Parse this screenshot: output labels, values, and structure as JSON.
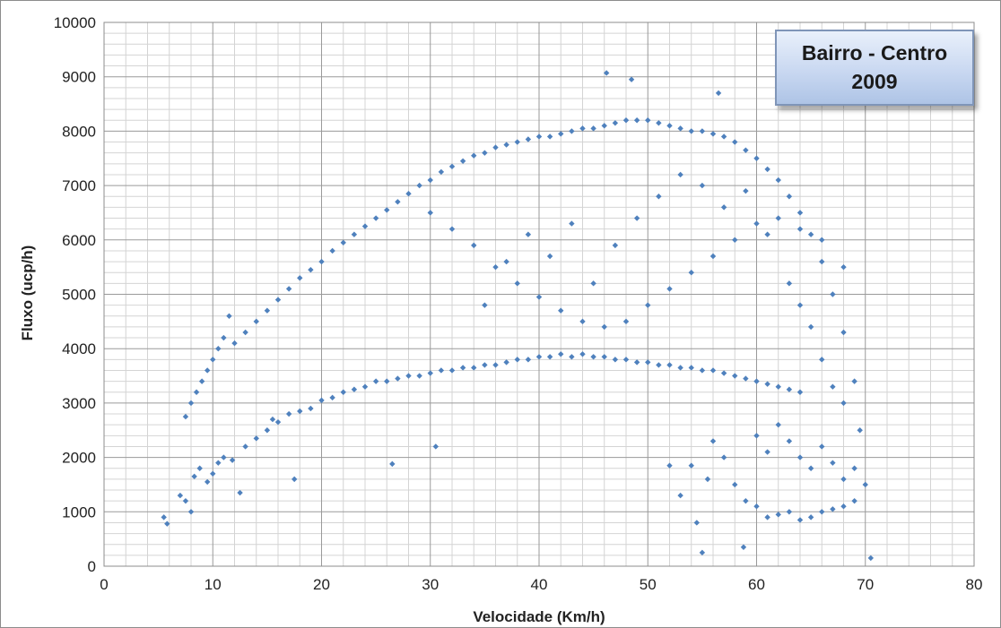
{
  "chart_data": {
    "type": "scatter",
    "title": "Bairro - Centro",
    "subtitle": "2009",
    "xlabel": "Velocidade (Km/h)",
    "ylabel": "Fluxo (ucp/h)",
    "xlim": [
      0,
      80
    ],
    "ylim": [
      0,
      10000
    ],
    "x_ticks": [
      "0",
      "10",
      "20",
      "30",
      "40",
      "50",
      "60",
      "70",
      "80"
    ],
    "y_ticks": [
      "0",
      "1000",
      "2000",
      "3000",
      "4000",
      "5000",
      "6000",
      "7000",
      "8000",
      "9000",
      "10000"
    ],
    "grid": true,
    "legend": "none",
    "marker_color": "#4f81bd",
    "series": [
      {
        "points": [
          [
            5.5,
            900
          ],
          [
            5.8,
            780
          ],
          [
            7,
            1300
          ],
          [
            7.5,
            1200
          ],
          [
            8,
            1000
          ],
          [
            8.3,
            1650
          ],
          [
            8.8,
            1800
          ],
          [
            9.5,
            1550
          ],
          [
            10,
            1700
          ],
          [
            10.5,
            1900
          ],
          [
            11,
            2000
          ],
          [
            11.8,
            1950
          ],
          [
            12.5,
            1350
          ],
          [
            13,
            2200
          ],
          [
            14,
            2350
          ],
          [
            15,
            2500
          ],
          [
            15.5,
            2700
          ],
          [
            16,
            2650
          ],
          [
            17,
            2800
          ],
          [
            17.5,
            1600
          ],
          [
            18,
            2850
          ],
          [
            19,
            2900
          ],
          [
            20,
            3050
          ],
          [
            21,
            3100
          ],
          [
            22,
            3200
          ],
          [
            23,
            3250
          ],
          [
            24,
            3300
          ],
          [
            25,
            3400
          ],
          [
            26,
            3400
          ],
          [
            26.5,
            1880
          ],
          [
            27,
            3450
          ],
          [
            28,
            3500
          ],
          [
            29,
            3500
          ],
          [
            30,
            3550
          ],
          [
            30.5,
            2200
          ],
          [
            31,
            3600
          ],
          [
            32,
            3600
          ],
          [
            33,
            3650
          ],
          [
            34,
            3650
          ],
          [
            35,
            3700
          ],
          [
            36,
            3700
          ],
          [
            37,
            3750
          ],
          [
            38,
            3800
          ],
          [
            39,
            3800
          ],
          [
            40,
            3850
          ],
          [
            41,
            3850
          ],
          [
            42,
            3900
          ],
          [
            43,
            3850
          ],
          [
            44,
            3900
          ],
          [
            45,
            3850
          ],
          [
            46,
            3850
          ],
          [
            47,
            3800
          ],
          [
            48,
            3800
          ],
          [
            49,
            3750
          ],
          [
            50,
            3750
          ],
          [
            51,
            3700
          ],
          [
            52,
            3700
          ],
          [
            53,
            3650
          ],
          [
            54,
            3650
          ],
          [
            55,
            3600
          ],
          [
            56,
            3600
          ],
          [
            57,
            3550
          ],
          [
            58,
            3500
          ],
          [
            59,
            3450
          ],
          [
            60,
            3400
          ],
          [
            61,
            3350
          ],
          [
            62,
            3300
          ],
          [
            63,
            3250
          ],
          [
            64,
            3200
          ],
          [
            7.5,
            2750
          ],
          [
            8,
            3000
          ],
          [
            8.5,
            3200
          ],
          [
            9,
            3400
          ],
          [
            9.5,
            3600
          ],
          [
            10,
            3800
          ],
          [
            10.5,
            4000
          ],
          [
            11,
            4200
          ],
          [
            11.5,
            4600
          ],
          [
            12,
            4100
          ],
          [
            13,
            4300
          ],
          [
            14,
            4500
          ],
          [
            15,
            4700
          ],
          [
            16,
            4900
          ],
          [
            17,
            5100
          ],
          [
            18,
            5300
          ],
          [
            19,
            5450
          ],
          [
            20,
            5600
          ],
          [
            21,
            5800
          ],
          [
            22,
            5950
          ],
          [
            23,
            6100
          ],
          [
            24,
            6250
          ],
          [
            25,
            6400
          ],
          [
            26,
            6550
          ],
          [
            27,
            6700
          ],
          [
            28,
            6850
          ],
          [
            29,
            7000
          ],
          [
            30,
            7100
          ],
          [
            31,
            7250
          ],
          [
            32,
            7350
          ],
          [
            33,
            7450
          ],
          [
            34,
            7550
          ],
          [
            35,
            7600
          ],
          [
            36,
            7700
          ],
          [
            37,
            7750
          ],
          [
            38,
            7800
          ],
          [
            39,
            7850
          ],
          [
            40,
            7900
          ],
          [
            41,
            7900
          ],
          [
            42,
            7950
          ],
          [
            43,
            8000
          ],
          [
            44,
            8050
          ],
          [
            45,
            8050
          ],
          [
            46,
            8100
          ],
          [
            46.2,
            9070
          ],
          [
            47,
            8150
          ],
          [
            48,
            8200
          ],
          [
            48.5,
            8950
          ],
          [
            49,
            8200
          ],
          [
            50,
            8200
          ],
          [
            51,
            8150
          ],
          [
            52,
            8100
          ],
          [
            53,
            8050
          ],
          [
            54,
            8000
          ],
          [
            55,
            8000
          ],
          [
            56,
            7950
          ],
          [
            56.5,
            8700
          ],
          [
            57,
            7900
          ],
          [
            58,
            7800
          ],
          [
            59,
            7650
          ],
          [
            60,
            7500
          ],
          [
            61,
            7300
          ],
          [
            62,
            7100
          ],
          [
            63,
            6800
          ],
          [
            64,
            6500
          ],
          [
            65,
            6100
          ],
          [
            66,
            5600
          ],
          [
            67,
            5000
          ],
          [
            68,
            4300
          ],
          [
            69,
            3400
          ],
          [
            69.5,
            2500
          ],
          [
            70,
            1500
          ],
          [
            70.5,
            150
          ],
          [
            30,
            6500
          ],
          [
            32,
            6200
          ],
          [
            34,
            5900
          ],
          [
            36,
            5500
          ],
          [
            38,
            5200
          ],
          [
            40,
            4950
          ],
          [
            42,
            4700
          ],
          [
            44,
            4500
          ],
          [
            46,
            4400
          ],
          [
            48,
            4500
          ],
          [
            50,
            4800
          ],
          [
            52,
            5100
          ],
          [
            54,
            5400
          ],
          [
            56,
            5700
          ],
          [
            58,
            6000
          ],
          [
            60,
            6300
          ],
          [
            62,
            6400
          ],
          [
            64,
            6200
          ],
          [
            66,
            6000
          ],
          [
            68,
            5500
          ],
          [
            35,
            4800
          ],
          [
            37,
            5600
          ],
          [
            39,
            6100
          ],
          [
            41,
            5700
          ],
          [
            43,
            6300
          ],
          [
            45,
            5200
          ],
          [
            47,
            5900
          ],
          [
            49,
            6400
          ],
          [
            51,
            6800
          ],
          [
            53,
            7200
          ],
          [
            55,
            7000
          ],
          [
            57,
            6600
          ],
          [
            59,
            6900
          ],
          [
            61,
            6100
          ],
          [
            52,
            1850
          ],
          [
            53,
            1300
          ],
          [
            54,
            1850
          ],
          [
            54.5,
            800
          ],
          [
            55,
            250
          ],
          [
            55.5,
            1600
          ],
          [
            56,
            2300
          ],
          [
            57,
            2000
          ],
          [
            58,
            1500
          ],
          [
            58.8,
            350
          ],
          [
            59,
            1200
          ],
          [
            60,
            1100
          ],
          [
            61,
            900
          ],
          [
            62,
            950
          ],
          [
            63,
            1000
          ],
          [
            64,
            850
          ],
          [
            65,
            900
          ],
          [
            66,
            1000
          ],
          [
            67,
            1050
          ],
          [
            68,
            1100
          ],
          [
            69,
            1200
          ],
          [
            60,
            2400
          ],
          [
            61,
            2100
          ],
          [
            62,
            2600
          ],
          [
            63,
            2300
          ],
          [
            64,
            2000
          ],
          [
            65,
            1800
          ],
          [
            66,
            2200
          ],
          [
            67,
            1900
          ],
          [
            68,
            1600
          ],
          [
            69,
            1800
          ],
          [
            66,
            3800
          ],
          [
            67,
            3300
          ],
          [
            68,
            3000
          ],
          [
            65,
            4400
          ],
          [
            64,
            4800
          ],
          [
            63,
            5200
          ]
        ]
      }
    ]
  }
}
